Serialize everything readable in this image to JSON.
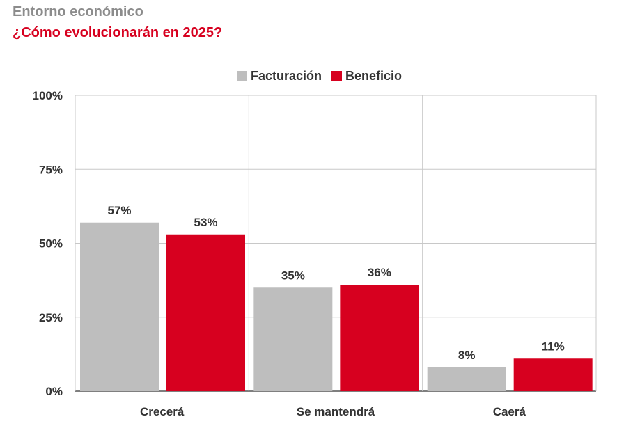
{
  "header": {
    "supertitle": "Entorno económico",
    "title": "¿Cómo evolucionarán en 2025?"
  },
  "chart_data": {
    "type": "bar",
    "title": "¿Cómo evolucionarán en 2025?",
    "categories": [
      "Crecerá",
      "Se mantendrá",
      "Caerá"
    ],
    "series": [
      {
        "name": "Facturación",
        "values": [
          57,
          35,
          8
        ],
        "labels": [
          "57%",
          "35%",
          "8%"
        ],
        "color": "#bebebe"
      },
      {
        "name": "Beneficio",
        "values": [
          53,
          36,
          11
        ],
        "labels": [
          "53%",
          "36%",
          "11%"
        ],
        "color": "#d7001f"
      }
    ],
    "ylim": [
      0,
      100
    ],
    "yticks": [
      0,
      25,
      50,
      75,
      100
    ],
    "ytick_labels": [
      "0%",
      "25%",
      "50%",
      "75%",
      "100%"
    ],
    "xlabel": "",
    "ylabel": "",
    "grid": true,
    "legend_position": "top-center"
  }
}
